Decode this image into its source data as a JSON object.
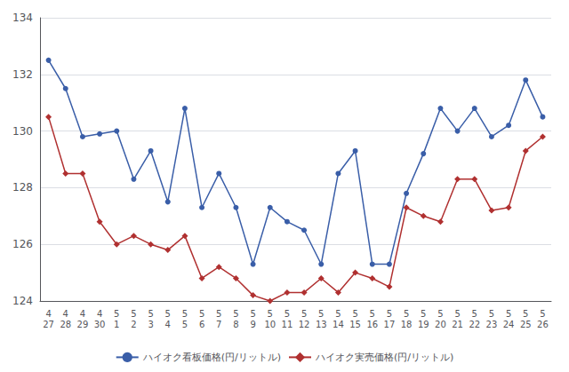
{
  "chart_data": {
    "type": "line",
    "categories": [
      "4\n27",
      "4\n28",
      "4\n29",
      "4\n30",
      "5\n1",
      "5\n2",
      "5\n3",
      "5\n4",
      "5\n5",
      "5\n6",
      "5\n7",
      "5\n8",
      "5\n9",
      "5\n10",
      "5\n11",
      "5\n12",
      "5\n13",
      "5\n14",
      "5\n15",
      "5\n16",
      "5\n17",
      "5\n18",
      "5\n19",
      "5\n20",
      "5\n21",
      "5\n22",
      "5\n23",
      "5\n24",
      "5\n25",
      "5\n26"
    ],
    "series": [
      {
        "name": "ハイオク看板価格(円/リットル)",
        "color": "#3a5ea8",
        "marker": "circle",
        "values": [
          132.5,
          131.5,
          129.8,
          129.9,
          130.0,
          128.3,
          129.3,
          127.5,
          130.8,
          127.3,
          128.5,
          127.3,
          125.3,
          127.3,
          126.8,
          126.5,
          125.3,
          128.5,
          129.3,
          125.3,
          125.3,
          127.8,
          129.2,
          130.8,
          130.0,
          130.8,
          129.8,
          130.2,
          131.8,
          130.5
        ]
      },
      {
        "name": "ハイオク実売価格(円/リットル)",
        "color": "#b03030",
        "marker": "diamond",
        "values": [
          130.5,
          128.5,
          128.5,
          126.8,
          126.0,
          126.3,
          126.0,
          125.8,
          126.3,
          124.8,
          125.2,
          124.8,
          124.2,
          124.0,
          124.3,
          124.3,
          124.8,
          124.3,
          125.0,
          124.8,
          124.5,
          127.3,
          127.0,
          126.8,
          128.3,
          128.3,
          127.2,
          127.3,
          129.3,
          129.8
        ]
      }
    ],
    "ylim": [
      124,
      134
    ],
    "yticks": [
      124,
      126,
      128,
      130,
      132,
      134
    ],
    "grid": true,
    "legend": "bottom"
  }
}
